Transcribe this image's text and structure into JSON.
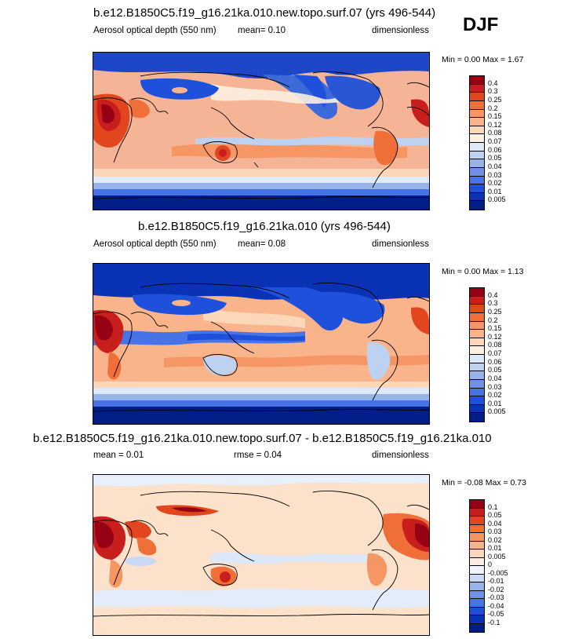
{
  "season": "DJF",
  "panels": [
    {
      "title": "b.e12.B1850C5.f19_g16.21ka.010.new.topo.surf.07 (yrs 496-544)",
      "left_label": "Aerosol optical depth (550 nm)",
      "mean_text": "mean=   0.10",
      "rmse_text": "",
      "units": "dimensionless",
      "minmax": "Min =   0.00 Max =   1.67",
      "ocean_color": "#f6b496",
      "levels": [
        "0.4",
        "0.3",
        "0.25",
        "0.2",
        "0.15",
        "0.12",
        "0.08",
        "0.07",
        "0.06",
        "0.05",
        "0.04",
        "0.03",
        "0.02",
        "0.01",
        "0.005"
      ],
      "colors": [
        "#960014",
        "#c81e1e",
        "#e1461e",
        "#f06e37",
        "#f59664",
        "#fab48c",
        "#fcd7b9",
        "#fcf0e1",
        "#dceafa",
        "#bcd2f0",
        "#96b4eb",
        "#6e91e6",
        "#4673e6",
        "#1e50dc",
        "#0a32b4",
        "#001e87"
      ]
    },
    {
      "title": "b.e12.B1850C5.f19_g16.21ka.010 (yrs 496-544)",
      "left_label": "Aerosol optical depth (550 nm)",
      "mean_text": "mean=   0.08",
      "rmse_text": "",
      "units": "dimensionless",
      "minmax": "Min =   0.00 Max =   1.13",
      "ocean_color": "#fab48c",
      "levels": [
        "0.4",
        "0.3",
        "0.25",
        "0.2",
        "0.15",
        "0.12",
        "0.08",
        "0.07",
        "0.06",
        "0.05",
        "0.04",
        "0.03",
        "0.02",
        "0.01",
        "0.005"
      ],
      "colors": [
        "#960014",
        "#c81e1e",
        "#e1461e",
        "#f06e37",
        "#f59664",
        "#fab48c",
        "#fcd7b9",
        "#fcf0e1",
        "#dceafa",
        "#bcd2f0",
        "#96b4eb",
        "#6e91e6",
        "#4673e6",
        "#1e50dc",
        "#0a32b4",
        "#001e87"
      ]
    },
    {
      "title": "b.e12.B1850C5.f19_g16.21ka.010.new.topo.surf.07 - b.e12.B1850C5.f19_g16.21ka.010",
      "left_label": "mean =   0.01",
      "mean_text": "",
      "rmse_text": "rmse =   0.04",
      "units": "dimensionless",
      "minmax": "Min =  -0.08 Max =   0.73",
      "ocean_color": "#fce1cb",
      "levels": [
        "0.1",
        "0.05",
        "0.04",
        "0.03",
        "0.02",
        "0.01",
        "0.005",
        "0",
        "-0.005",
        "-0.01",
        "-0.02",
        "-0.03",
        "-0.04",
        "-0.05",
        "-0.1"
      ],
      "colors": [
        "#960014",
        "#c81e1e",
        "#e1461e",
        "#f06e37",
        "#f59664",
        "#fab48c",
        "#fcd7b9",
        "#fdeee0",
        "#eef4fc",
        "#c8d8f5",
        "#96b4eb",
        "#6e91e6",
        "#4673e6",
        "#1e50dc",
        "#0a32b4",
        "#001e87"
      ]
    }
  ]
}
